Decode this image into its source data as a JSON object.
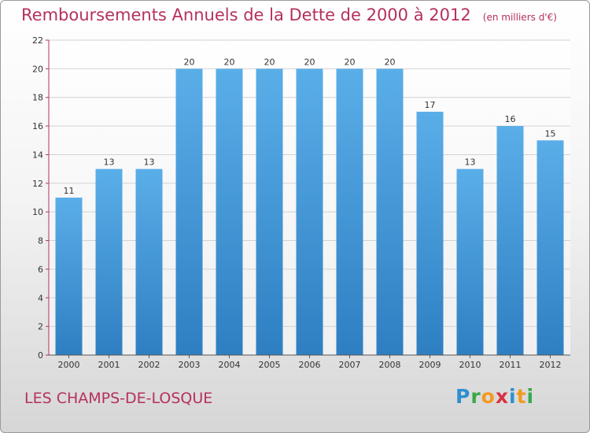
{
  "title": "Remboursements Annuels de la Dette de 2000 à 2012",
  "subtitle": "(en milliers d'€)",
  "location": "LES CHAMPS-DE-LOSQUE",
  "logo": {
    "text": "Proxiti",
    "letters": [
      "P",
      "r",
      "o",
      "x",
      "i",
      "t",
      "i"
    ],
    "colors": [
      "#2f8fd0",
      "#3aa84a",
      "#f39a1e",
      "#d93240",
      "#2f8fd0",
      "#f39a1e",
      "#3aa84a"
    ]
  },
  "colors": {
    "accent": "#b5305f",
    "bar_top": "#5aaee8",
    "bar_bottom": "#2e7fc2",
    "axis": "#b5305f",
    "grid": "#d2d2d2"
  },
  "chart_data": {
    "type": "bar",
    "title": "Remboursements Annuels de la Dette de 2000 à 2012",
    "subtitle": "(en milliers d'€)",
    "xlabel": "",
    "ylabel": "",
    "categories": [
      "2000",
      "2001",
      "2002",
      "2003",
      "2004",
      "2005",
      "2006",
      "2007",
      "2008",
      "2009",
      "2010",
      "2011",
      "2012"
    ],
    "values": [
      11,
      13,
      13,
      20,
      20,
      20,
      20,
      20,
      20,
      17,
      13,
      16,
      15
    ],
    "ylim": [
      0,
      22
    ],
    "yticks": [
      0,
      2,
      4,
      6,
      8,
      10,
      12,
      14,
      16,
      18,
      20,
      22
    ],
    "grid": true,
    "legend": "none"
  }
}
